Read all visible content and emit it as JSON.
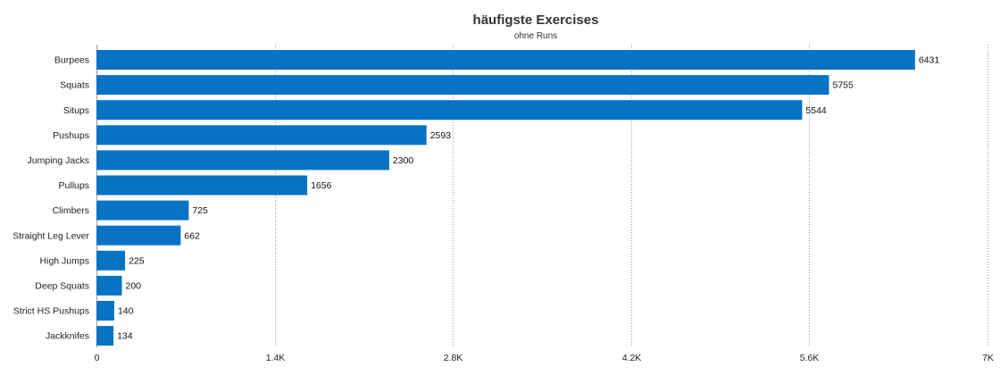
{
  "chart_data": {
    "type": "bar",
    "orientation": "horizontal",
    "title": "häufigste Exercises",
    "subtitle": "ohne Runs",
    "categories": [
      "Burpees",
      "Squats",
      "Situps",
      "Pushups",
      "Jumping Jacks",
      "Pullups",
      "Climbers",
      "Straight Leg Lever",
      "High Jumps",
      "Deep Squats",
      "Strict HS Pushups",
      "Jackknifes"
    ],
    "values": [
      6431,
      5755,
      5544,
      2593,
      2300,
      1656,
      725,
      662,
      225,
      200,
      140,
      134
    ],
    "value_labels": [
      "6431",
      "5755",
      "5544",
      "2593",
      "2300",
      "1656",
      "725",
      "662",
      "225",
      "200",
      "140",
      "134"
    ],
    "xlim": [
      0,
      7000
    ],
    "xticks": [
      0,
      1400,
      2800,
      4200,
      5600,
      7000
    ],
    "xtick_labels": [
      "0",
      "1.4K",
      "2.8K",
      "4.2K",
      "5.6K",
      "7K"
    ],
    "grid": "vertical dotted",
    "legend": "none",
    "bar_color": "#0873c4"
  }
}
